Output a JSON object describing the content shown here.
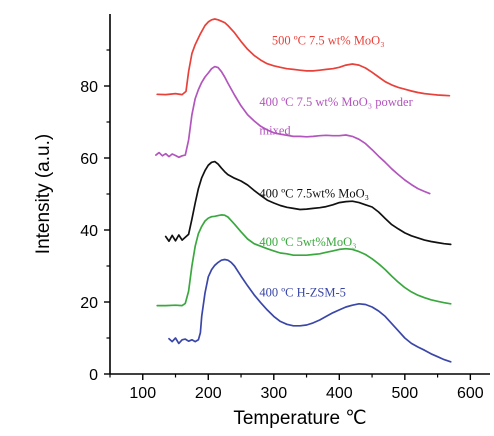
{
  "chart_data": {
    "type": "line",
    "xlabel": "Temperature ℃",
    "ylabel": "Intensity (a.u.)",
    "xlim": [
      50,
      630
    ],
    "ylim": [
      0,
      100
    ],
    "xticks": [
      "100",
      "200",
      "300",
      "400",
      "500",
      "600"
    ],
    "yticks": [
      "0",
      "20",
      "40",
      "60",
      "80"
    ],
    "grid": false,
    "series": [
      {
        "name": "500 ºC 7.5 wt% MoO₃",
        "label_lines": [
          "500 ºC 7.5 wt% MoO₃"
        ],
        "color": "#e8413a",
        "x": [
          122,
          135,
          150,
          160,
          166,
          170,
          175,
          180,
          188,
          195,
          200,
          205,
          210,
          215,
          220,
          225,
          230,
          240,
          250,
          260,
          270,
          280,
          290,
          300,
          310,
          320,
          330,
          340,
          350,
          360,
          370,
          380,
          390,
          400,
          410,
          420,
          430,
          440,
          450,
          460,
          470,
          480,
          490,
          500,
          510,
          520,
          530,
          540,
          550,
          560,
          568
        ],
        "y": [
          77.7,
          77.6,
          77.9,
          77.6,
          78.5,
          84.0,
          89.0,
          91.5,
          94.5,
          96.8,
          97.8,
          98.4,
          98.6,
          98.4,
          98.0,
          97.6,
          96.8,
          94.8,
          92.4,
          90.2,
          88.5,
          87.2,
          86.2,
          85.6,
          85.2,
          84.8,
          84.6,
          84.4,
          84.2,
          84.2,
          84.4,
          84.6,
          84.8,
          85.2,
          85.8,
          86.1,
          85.8,
          85.0,
          83.8,
          82.5,
          81.2,
          80.3,
          79.6,
          79.1,
          78.6,
          78.2,
          77.9,
          77.7,
          77.5,
          77.4,
          77.3
        ]
      },
      {
        "name": "400 ºC 7.5 wt% MoO₃ powder mixed",
        "label_lines": [
          "400 ºC 7.5 wt% MoO₃ powder",
          "mixed"
        ],
        "color": "#b255bd",
        "x": [
          120,
          125,
          130,
          135,
          140,
          145,
          150,
          155,
          160,
          165,
          170,
          175,
          180,
          185,
          190,
          195,
          200,
          205,
          210,
          215,
          220,
          225,
          230,
          240,
          250,
          260,
          270,
          280,
          290,
          300,
          310,
          320,
          330,
          340,
          350,
          360,
          370,
          380,
          390,
          400,
          410,
          420,
          430,
          440,
          450,
          460,
          470,
          480,
          490,
          500,
          510,
          520,
          530,
          538
        ],
        "y": [
          60.8,
          61.5,
          60.6,
          61.2,
          60.4,
          61.1,
          60.7,
          60.2,
          60.6,
          60.8,
          65.0,
          72.0,
          76.5,
          79.0,
          81.0,
          82.5,
          83.6,
          84.8,
          85.4,
          85.1,
          84.0,
          82.5,
          80.8,
          77.5,
          74.5,
          72.0,
          70.3,
          68.8,
          67.8,
          67.0,
          66.6,
          66.3,
          66.0,
          66.0,
          65.9,
          66.0,
          66.2,
          66.3,
          66.2,
          66.2,
          66.4,
          66.0,
          65.2,
          64.0,
          62.3,
          60.5,
          58.8,
          57.0,
          55.4,
          53.9,
          52.6,
          51.5,
          50.7,
          50.1
        ]
      },
      {
        "name": "400 ºC 7.5wt% MoO₃",
        "label_lines": [
          "400 ºC 7.5wt% MoO₃"
        ],
        "color": "#111111",
        "x": [
          135,
          140,
          145,
          150,
          155,
          160,
          165,
          170,
          175,
          180,
          185,
          190,
          195,
          200,
          205,
          210,
          215,
          220,
          225,
          230,
          240,
          250,
          260,
          270,
          280,
          290,
          300,
          310,
          320,
          330,
          340,
          350,
          360,
          370,
          380,
          390,
          400,
          410,
          420,
          430,
          440,
          450,
          460,
          470,
          480,
          490,
          500,
          510,
          520,
          530,
          540,
          550,
          560,
          570
        ],
        "y": [
          38.2,
          36.9,
          38.5,
          37.0,
          38.6,
          37.2,
          38.0,
          38.8,
          43.0,
          47.5,
          51.5,
          54.5,
          56.5,
          58.0,
          58.8,
          59.0,
          58.3,
          57.2,
          56.2,
          55.4,
          54.4,
          53.6,
          52.5,
          51.0,
          49.6,
          48.3,
          47.5,
          46.8,
          46.3,
          46.0,
          45.7,
          45.8,
          46.0,
          46.2,
          46.5,
          47.0,
          47.6,
          47.9,
          48.0,
          47.6,
          47.0,
          46.4,
          45.0,
          43.2,
          41.5,
          40.3,
          39.2,
          38.4,
          37.8,
          37.2,
          36.8,
          36.5,
          36.2,
          36.0
        ]
      },
      {
        "name": "400 ºC 5wt%MoO₃",
        "label_lines": [
          "400 ºC 5wt%MoO₃"
        ],
        "color": "#3aa83e",
        "x": [
          122,
          135,
          150,
          160,
          165,
          170,
          175,
          180,
          185,
          190,
          195,
          200,
          205,
          210,
          215,
          220,
          225,
          230,
          235,
          240,
          250,
          260,
          270,
          280,
          290,
          300,
          310,
          320,
          330,
          340,
          350,
          360,
          370,
          380,
          390,
          400,
          410,
          420,
          430,
          440,
          450,
          460,
          470,
          480,
          490,
          500,
          510,
          520,
          530,
          540,
          550,
          560,
          570
        ],
        "y": [
          19.0,
          19.0,
          19.1,
          19.0,
          19.6,
          23.0,
          30.0,
          35.5,
          39.0,
          41.0,
          42.5,
          43.3,
          43.7,
          43.8,
          44.0,
          44.2,
          44.1,
          43.6,
          42.6,
          41.6,
          39.5,
          37.5,
          36.2,
          35.5,
          34.8,
          34.2,
          33.6,
          33.4,
          33.0,
          33.0,
          33.0,
          33.2,
          33.4,
          33.8,
          34.2,
          34.6,
          34.8,
          34.6,
          34.0,
          33.2,
          32.0,
          30.6,
          29.0,
          27.2,
          25.5,
          24.0,
          22.8,
          21.9,
          21.2,
          20.6,
          20.2,
          19.8,
          19.5
        ]
      },
      {
        "name": "400 ºC H-ZSM-5",
        "label_lines": [
          "400 ºC H-ZSM-5"
        ],
        "color": "#3a47a8",
        "x": [
          140,
          145,
          150,
          155,
          160,
          165,
          170,
          175,
          180,
          185,
          188,
          190,
          195,
          200,
          205,
          210,
          215,
          220,
          225,
          230,
          235,
          240,
          250,
          260,
          270,
          280,
          290,
          300,
          310,
          320,
          330,
          340,
          350,
          360,
          370,
          380,
          390,
          400,
          410,
          420,
          430,
          440,
          450,
          460,
          470,
          480,
          490,
          500,
          510,
          520,
          530,
          540,
          550,
          560,
          570
        ],
        "y": [
          9.8,
          9.0,
          10.0,
          8.5,
          9.5,
          9.7,
          9.1,
          9.5,
          9.0,
          9.5,
          11.5,
          16.0,
          22.5,
          27.0,
          29.0,
          30.2,
          31.0,
          31.6,
          31.8,
          31.6,
          31.0,
          30.0,
          27.2,
          24.5,
          22.0,
          19.8,
          17.8,
          16.0,
          14.6,
          13.8,
          13.4,
          13.4,
          13.6,
          14.2,
          15.0,
          16.0,
          17.0,
          17.8,
          18.6,
          19.1,
          19.5,
          19.3,
          18.6,
          17.5,
          16.0,
          14.0,
          12.0,
          10.0,
          8.5,
          7.5,
          6.6,
          5.6,
          4.8,
          4.0,
          3.4
        ]
      }
    ]
  }
}
